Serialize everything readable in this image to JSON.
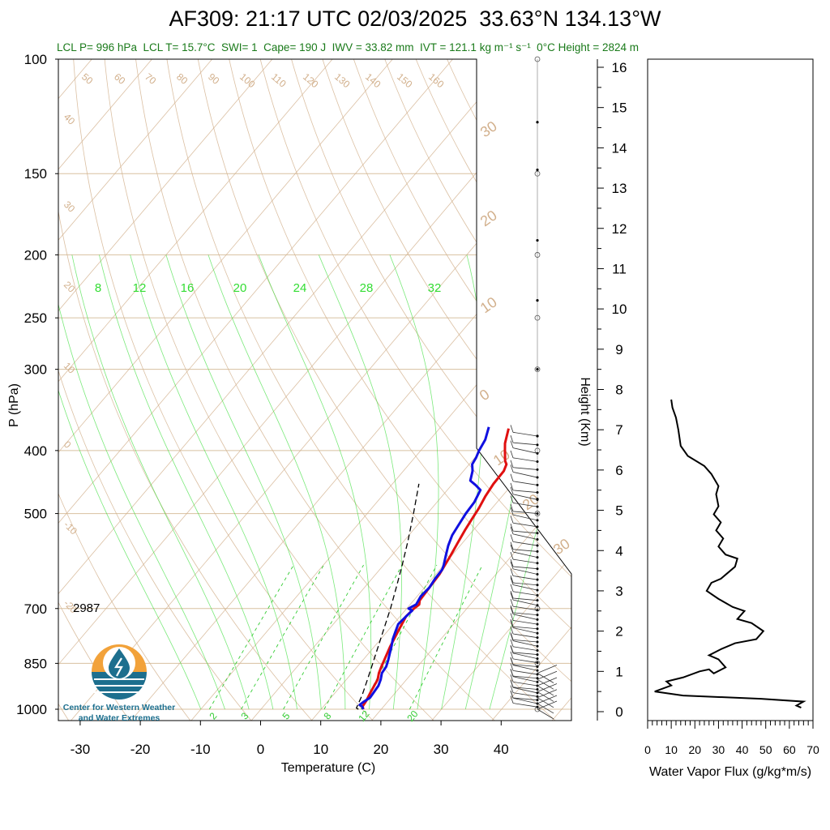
{
  "header": {
    "title": "AF309: 21:17 UTC 02/03/2025  33.63°N 134.13°W",
    "stats": "LCL P= 996 hPa  LCL T= 15.7°C  SWI= 1  Cape= 190 J  IWV = 33.82 mm  IVT = 121.1 kg m⁻¹ s⁻¹  0°C Height = 2824 m"
  },
  "colors": {
    "temperature": "#e01010",
    "dewpoint": "#1010e0",
    "parcel": "#000000",
    "dry_adiabat": "#d2b08c",
    "moist_adiabat": "#33dd33",
    "mixing_ratio": "#33cc33",
    "isobar": "#d8c0a0",
    "flux": "#000000",
    "logo_orange": "#f2a23a",
    "logo_teal": "#1d6f8e"
  },
  "logo": {
    "line1": "Center for Western Weather",
    "line2": "and Water Extremes"
  },
  "height_marker": "2987",
  "chart_data": [
    {
      "type": "line",
      "name": "skew-t",
      "xlabel": "Temperature (C)",
      "ylabel": "P (hPa)",
      "x_ticks": [
        -30,
        -20,
        -10,
        0,
        10,
        20,
        30,
        40
      ],
      "y_ticks": [
        100,
        150,
        200,
        250,
        300,
        400,
        500,
        700,
        850,
        1000
      ],
      "isotherm_labels": [
        "50",
        "60",
        "70",
        "80",
        "90",
        "100",
        "110",
        "120",
        "130",
        "140",
        "150",
        "160"
      ],
      "dry_adiabat_labels": [
        "40",
        "30",
        "20",
        "10",
        "0",
        "-10",
        "-20"
      ],
      "right_labels": [
        "30",
        "20",
        "10",
        "0",
        "10",
        "20",
        "30"
      ],
      "mixing_ratio_top_labels": [
        "8",
        "12",
        "16",
        "20",
        "24",
        "28",
        "32"
      ],
      "mixing_ratio_bottom_labels": [
        "2",
        "3",
        "5",
        "8",
        "12",
        "20"
      ],
      "series": [
        {
          "name": "temperature",
          "points": [
            [
              17,
              1000
            ],
            [
              16.5,
              990
            ],
            [
              16.3,
              970
            ],
            [
              15.8,
              940
            ],
            [
              15.2,
              900
            ],
            [
              14.5,
              880
            ],
            [
              14,
              860
            ],
            [
              12.6,
              800
            ],
            [
              11.8,
              760
            ],
            [
              11,
              720
            ],
            [
              11.2,
              700
            ],
            [
              11.5,
              690
            ],
            [
              11,
              680
            ],
            [
              10.8,
              650
            ],
            [
              10.6,
              620
            ],
            [
              10.2,
              600
            ],
            [
              9.8,
              580
            ],
            [
              9.2,
              555
            ],
            [
              8.6,
              530
            ],
            [
              8.2,
              510
            ],
            [
              7.8,
              490
            ],
            [
              7.2,
              470
            ],
            [
              6.8,
              450
            ],
            [
              6.7,
              430
            ],
            [
              6.2,
              420
            ],
            [
              5.5,
              415
            ],
            [
              4,
              400
            ],
            [
              3,
              390
            ],
            [
              1.5,
              370
            ]
          ]
        },
        {
          "name": "dewpoint",
          "points": [
            [
              17,
              1000
            ],
            [
              16.4,
              990
            ],
            [
              15.8,
              985
            ],
            [
              16,
              975
            ],
            [
              16.5,
              960
            ],
            [
              16.2,
              920
            ],
            [
              15.7,
              900
            ],
            [
              15,
              880
            ],
            [
              14.8,
              860
            ],
            [
              14.2,
              840
            ],
            [
              13.5,
              820
            ],
            [
              12.8,
              800
            ],
            [
              12,
              780
            ],
            [
              11.4,
              760
            ],
            [
              10.8,
              740
            ],
            [
              11,
              720
            ],
            [
              11.2,
              705
            ],
            [
              10.3,
              700
            ],
            [
              11,
              690
            ],
            [
              10.6,
              670
            ],
            [
              10.8,
              650
            ],
            [
              10.5,
              630
            ],
            [
              10.4,
              610
            ],
            [
              10,
              600
            ],
            [
              9,
              580
            ],
            [
              8,
              560
            ],
            [
              7.2,
              540
            ],
            [
              6.8,
              520
            ],
            [
              6.4,
              500
            ],
            [
              6.2,
              480
            ],
            [
              5.5,
              460
            ],
            [
              4,
              452
            ],
            [
              2.5,
              445
            ],
            [
              1.5,
              430
            ],
            [
              0.5,
              420
            ],
            [
              0.2,
              410
            ],
            [
              -0.3,
              400
            ],
            [
              -0.8,
              385
            ],
            [
              -1.5,
              375
            ],
            [
              -2,
              368
            ]
          ]
        },
        {
          "name": "parcel",
          "points": [
            [
              16.2,
              1000
            ],
            [
              15.7,
              996
            ],
            [
              14.8,
              950
            ],
            [
              13.5,
              900
            ],
            [
              12.1,
              850
            ],
            [
              10.6,
              800
            ],
            [
              9,
              750
            ],
            [
              7.3,
              700
            ],
            [
              5.3,
              650
            ],
            [
              3.1,
              600
            ],
            [
              0.6,
              550
            ],
            [
              -2.3,
              500
            ],
            [
              -5.6,
              450
            ]
          ]
        }
      ]
    },
    {
      "type": "line",
      "name": "water-vapor-flux",
      "xlabel": "Water Vapor Flux (g/kg*m/s)",
      "ylabel": "Height (Km)",
      "xlim": [
        0,
        70
      ],
      "ylim": [
        0,
        16
      ],
      "x_ticks": [
        0,
        10,
        20,
        30,
        40,
        50,
        60,
        70
      ],
      "y_ticks": [
        0,
        1,
        2,
        3,
        4,
        5,
        6,
        7,
        8,
        9,
        10,
        11,
        12,
        13,
        14,
        15,
        16
      ],
      "series": [
        {
          "name": "flux",
          "points": [
            [
              65,
              0.1
            ],
            [
              63,
              0.15
            ],
            [
              66,
              0.25
            ],
            [
              48,
              0.32
            ],
            [
              15,
              0.4
            ],
            [
              3,
              0.5
            ],
            [
              10,
              0.65
            ],
            [
              8,
              0.75
            ],
            [
              15,
              0.85
            ],
            [
              22,
              1.0
            ],
            [
              26,
              1.05
            ],
            [
              28,
              0.95
            ],
            [
              33,
              1.1
            ],
            [
              30,
              1.3
            ],
            [
              26,
              1.4
            ],
            [
              31,
              1.55
            ],
            [
              37,
              1.7
            ],
            [
              46,
              1.8
            ],
            [
              49,
              2.0
            ],
            [
              44,
              2.2
            ],
            [
              38,
              2.3
            ],
            [
              41,
              2.5
            ],
            [
              36,
              2.6
            ],
            [
              30,
              2.8
            ],
            [
              25,
              3.0
            ],
            [
              27,
              3.2
            ],
            [
              31,
              3.3
            ],
            [
              33,
              3.4
            ],
            [
              37,
              3.6
            ],
            [
              38,
              3.8
            ],
            [
              33,
              3.9
            ],
            [
              30,
              4.1
            ],
            [
              32,
              4.3
            ],
            [
              29,
              4.5
            ],
            [
              31,
              4.7
            ],
            [
              28,
              4.9
            ],
            [
              30,
              5.1
            ],
            [
              29,
              5.4
            ],
            [
              30,
              5.6
            ],
            [
              27,
              5.9
            ],
            [
              24,
              6.1
            ],
            [
              17,
              6.35
            ],
            [
              14,
              6.6
            ],
            [
              13,
              7.0
            ],
            [
              12,
              7.3
            ],
            [
              10.5,
              7.55
            ],
            [
              10,
              7.75
            ]
          ]
        }
      ]
    }
  ]
}
